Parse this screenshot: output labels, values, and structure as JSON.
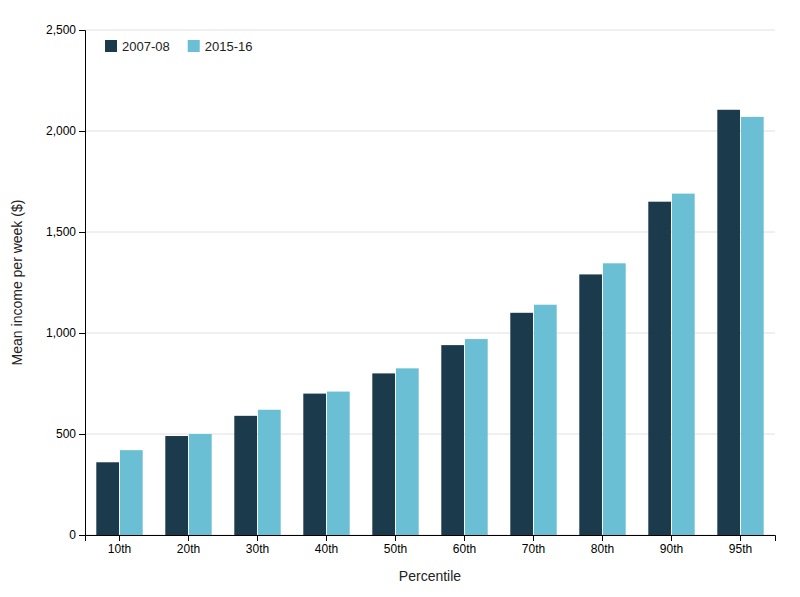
{
  "chart_data": {
    "type": "bar",
    "xlabel": "Percentile",
    "ylabel": "Mean income per week ($)",
    "categories": [
      "10th",
      "20th",
      "30th",
      "40th",
      "50th",
      "60th",
      "70th",
      "80th",
      "90th",
      "95th"
    ],
    "series": [
      {
        "name": "2007-08",
        "color": "#1b3a4b",
        "values": [
          360,
          490,
          590,
          700,
          800,
          940,
          1100,
          1290,
          1650,
          2105
        ]
      },
      {
        "name": "2015-16",
        "color": "#6bbfd4",
        "values": [
          420,
          500,
          620,
          710,
          825,
          970,
          1140,
          1345,
          1690,
          2070
        ]
      }
    ],
    "ylim": [
      0,
      2500
    ],
    "yticks": [
      0,
      500,
      {
        "value": 1000,
        "label": "1,000"
      },
      {
        "value": 1500,
        "label": "1,500"
      },
      {
        "value": 2000,
        "label": "2,000"
      },
      {
        "value": 2500,
        "label": "2,500"
      }
    ],
    "grid": true,
    "legend": "upper-left"
  }
}
